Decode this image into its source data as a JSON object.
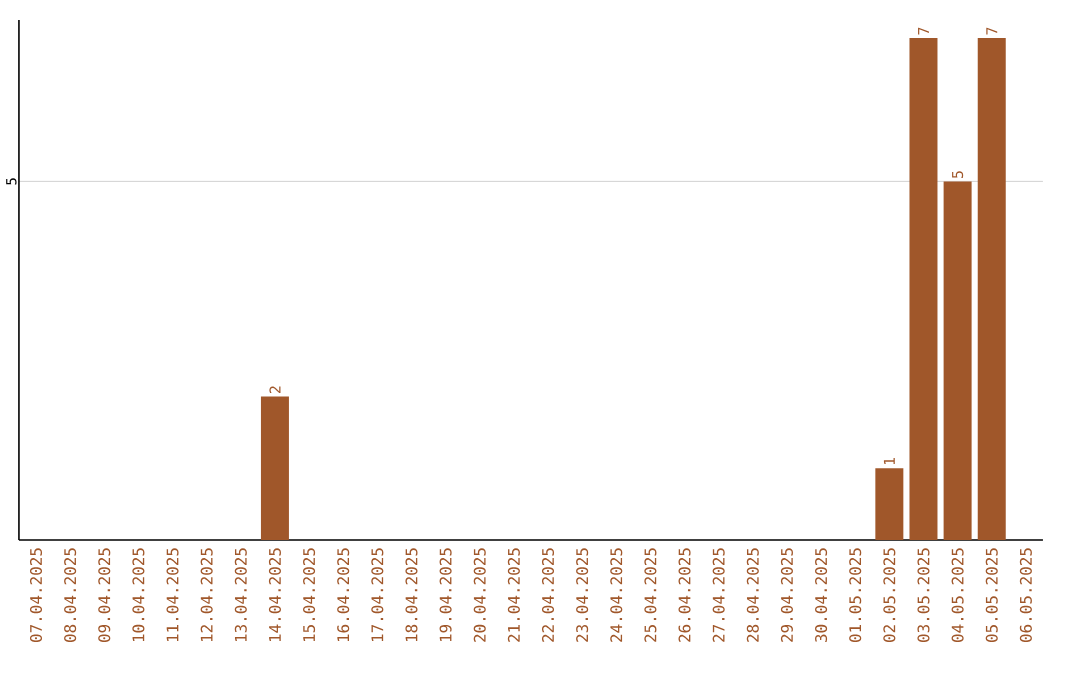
{
  "chart_data": {
    "type": "bar",
    "categories": [
      "07.04.2025",
      "08.04.2025",
      "09.04.2025",
      "10.04.2025",
      "11.04.2025",
      "12.04.2025",
      "13.04.2025",
      "14.04.2025",
      "15.04.2025",
      "16.04.2025",
      "17.04.2025",
      "18.04.2025",
      "19.04.2025",
      "20.04.2025",
      "21.04.2025",
      "22.04.2025",
      "23.04.2025",
      "24.04.2025",
      "25.04.2025",
      "26.04.2025",
      "27.04.2025",
      "28.04.2025",
      "29.04.2025",
      "30.04.2025",
      "01.05.2025",
      "02.05.2025",
      "03.05.2025",
      "04.05.2025",
      "05.05.2025",
      "06.05.2025"
    ],
    "values": [
      0,
      0,
      0,
      0,
      0,
      0,
      0,
      2,
      0,
      0,
      0,
      0,
      0,
      0,
      0,
      0,
      0,
      0,
      0,
      0,
      0,
      0,
      0,
      0,
      0,
      1,
      7,
      5,
      7,
      0
    ],
    "value_labels": [
      null,
      null,
      null,
      null,
      null,
      null,
      null,
      "2",
      null,
      null,
      null,
      null,
      null,
      null,
      null,
      null,
      null,
      null,
      null,
      null,
      null,
      null,
      null,
      null,
      null,
      "1",
      "7",
      "5",
      "7",
      null
    ],
    "color": "#a0572a",
    "ylim": [
      0,
      7.25
    ],
    "yticks": [
      5
    ],
    "grid": "y"
  }
}
